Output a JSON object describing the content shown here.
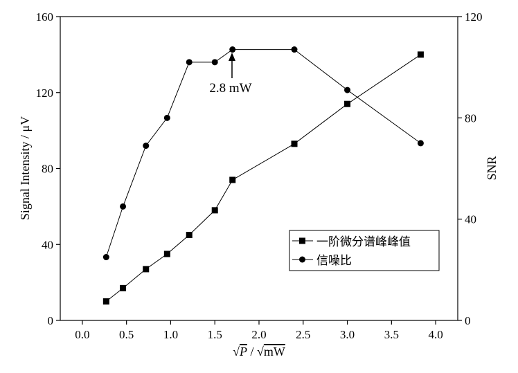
{
  "chart_data": {
    "type": "line",
    "xlabel_parts": [
      "√",
      "P",
      " / √",
      "mW"
    ],
    "ylabel": "Signal Intensity / μV",
    "y2label": "SNR",
    "xlim": [
      -0.25,
      4.25
    ],
    "ylim": [
      0,
      160
    ],
    "y2lim": [
      0,
      120
    ],
    "xticks": [
      0.0,
      0.5,
      1.0,
      1.5,
      2.0,
      2.5,
      3.0,
      3.5,
      4.0
    ],
    "xtick_labels": [
      "0.0",
      "0.5",
      "1.0",
      "1.5",
      "2.0",
      "2.5",
      "3.0",
      "3.5",
      "4.0"
    ],
    "yticks": [
      0,
      40,
      80,
      120,
      160
    ],
    "ytick_labels": [
      "0",
      "40",
      "80",
      "120",
      "160"
    ],
    "y2ticks": [
      0,
      40,
      80,
      120
    ],
    "y2tick_labels": [
      "0",
      "40",
      "80",
      "120"
    ],
    "legend_position": "bottom-right",
    "series": [
      {
        "name": "一阶微分谱峰峰值",
        "marker": "square",
        "axis": "left",
        "color": "#000000",
        "x": [
          0.27,
          0.46,
          0.72,
          0.96,
          1.21,
          1.5,
          1.7,
          2.4,
          3.0,
          3.83
        ],
        "y": [
          10,
          17,
          27,
          35,
          45,
          58,
          74,
          93,
          114,
          140
        ]
      },
      {
        "name": "信噪比",
        "marker": "circle",
        "axis": "right",
        "color": "#000000",
        "x": [
          0.27,
          0.46,
          0.72,
          0.96,
          1.21,
          1.5,
          1.7,
          2.4,
          3.0,
          3.83
        ],
        "y": [
          25,
          45,
          69,
          80,
          102,
          102,
          107,
          107,
          91,
          70
        ]
      }
    ],
    "annotations": [
      {
        "text": "2.8 mW",
        "x": 1.7,
        "y2": 107
      }
    ]
  }
}
